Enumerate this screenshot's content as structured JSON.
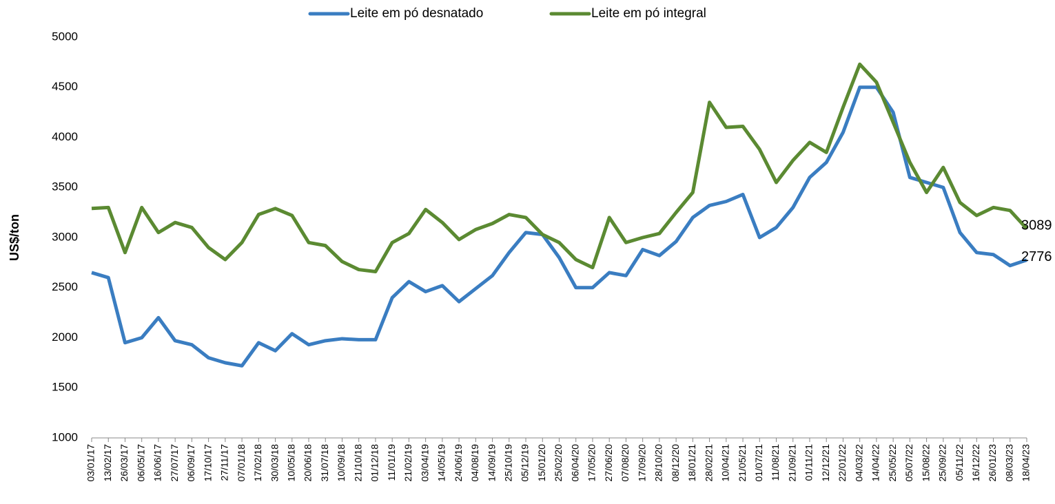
{
  "chart_data": {
    "type": "line",
    "y_label": "US$/ton",
    "categories": [
      "03/01/17",
      "13/02/17",
      "26/03/17",
      "06/05/17",
      "16/06/17",
      "27/07/17",
      "06/09/17",
      "17/10/17",
      "27/11/17",
      "07/01/18",
      "17/02/18",
      "30/03/18",
      "10/05/18",
      "20/06/18",
      "31/07/18",
      "10/09/18",
      "21/10/18",
      "01/12/18",
      "11/01/19",
      "21/02/19",
      "03/04/19",
      "14/05/19",
      "24/06/19",
      "04/08/19",
      "14/09/19",
      "25/10/19",
      "05/12/19",
      "15/01/20",
      "25/02/20",
      "06/04/20",
      "17/05/20",
      "27/06/20",
      "07/08/20",
      "17/09/20",
      "28/10/20",
      "08/12/20",
      "18/01/21",
      "28/02/21",
      "10/04/21",
      "21/05/21",
      "01/07/21",
      "11/08/21",
      "21/09/21",
      "01/11/21",
      "12/12/21",
      "22/01/22",
      "04/03/22",
      "14/04/22",
      "25/05/22",
      "05/07/22",
      "15/08/22",
      "25/09/22",
      "05/11/22",
      "16/12/22",
      "26/01/23",
      "08/03/23",
      "18/04/23"
    ],
    "series": [
      {
        "name": "Leite em pó desnatado",
        "color": "#3a7dc1",
        "values": [
          2650,
          2600,
          1950,
          2000,
          2200,
          1970,
          1930,
          1800,
          1750,
          1720,
          1950,
          1870,
          2040,
          1930,
          1970,
          1990,
          1980,
          1980,
          2400,
          2560,
          2460,
          2520,
          2360,
          2490,
          2620,
          2850,
          3050,
          3030,
          2800,
          2500,
          2500,
          2650,
          2620,
          2880,
          2820,
          2960,
          3200,
          3320,
          3360,
          3430,
          3000,
          3100,
          3300,
          3600,
          3750,
          4050,
          4500,
          4500,
          4250,
          3600,
          3550,
          3500,
          3050,
          2850,
          2830,
          2720,
          2776
        ]
      },
      {
        "name": "Leite em pó integral",
        "color": "#5b8a32",
        "values": [
          3290,
          3300,
          2850,
          3300,
          3050,
          3150,
          3100,
          2900,
          2780,
          2950,
          3230,
          3290,
          3220,
          2950,
          2920,
          2760,
          2680,
          2660,
          2950,
          3040,
          3280,
          3150,
          2980,
          3080,
          3140,
          3230,
          3200,
          3030,
          2950,
          2780,
          2700,
          3200,
          2950,
          3000,
          3040,
          3250,
          3450,
          4350,
          4100,
          4110,
          3880,
          3550,
          3770,
          3950,
          3850,
          4300,
          4730,
          4550,
          4150,
          3750,
          3450,
          3700,
          3350,
          3220,
          3300,
          3270,
          3089
        ]
      }
    ],
    "ylim": [
      1000,
      5000
    ],
    "yticks": [
      1000,
      1500,
      2000,
      2500,
      3000,
      3500,
      4000,
      4500,
      5000
    ],
    "grid": false,
    "legend": "top"
  }
}
